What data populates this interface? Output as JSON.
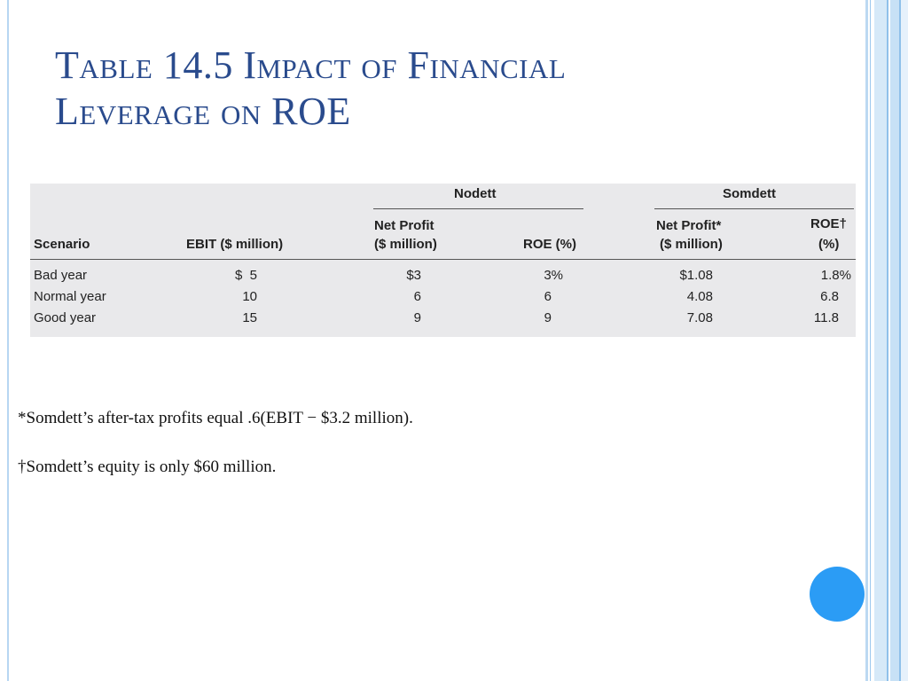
{
  "slide": {
    "title_line1": "Table 14.5 Impact of Financial",
    "title_line2": "Leverage on ROE"
  },
  "table": {
    "group_nodett": "Nodett",
    "group_somdett": "Somdett",
    "col_scenario": "Scenario",
    "col_ebit": "EBIT ($ million)",
    "col_np1_line1": "Net Profit",
    "col_np1_line2": "($ million)",
    "col_roe1": "ROE (%)",
    "col_np2_line1": "Net Profit*",
    "col_np2_line2": "($ million)",
    "col_roe2_line1": "ROE†",
    "col_roe2_line2": "(%)",
    "rows": [
      {
        "scenario": "Bad year",
        "ebit": "$  5",
        "np1": "$3",
        "roe1": "3%",
        "np2": "$1.08",
        "roe2": "1.8%"
      },
      {
        "scenario": "Normal year",
        "ebit": "10",
        "np1": "6",
        "roe1": "6",
        "np2": "4.08",
        "roe2": "6.8"
      },
      {
        "scenario": "Good year",
        "ebit": "15",
        "np1": "9",
        "roe1": "9",
        "np2": "7.08",
        "roe2": "11.8"
      }
    ]
  },
  "notes": {
    "note1": "*Somdett’s after-tax profits equal .6(EBIT − $3.2 million).",
    "note2": "†Somdett’s equity is only $60 million."
  },
  "colors": {
    "title": "#2a4b8d",
    "accent_circle": "#2b9cf5",
    "table_bg": "#e9e9eb"
  }
}
